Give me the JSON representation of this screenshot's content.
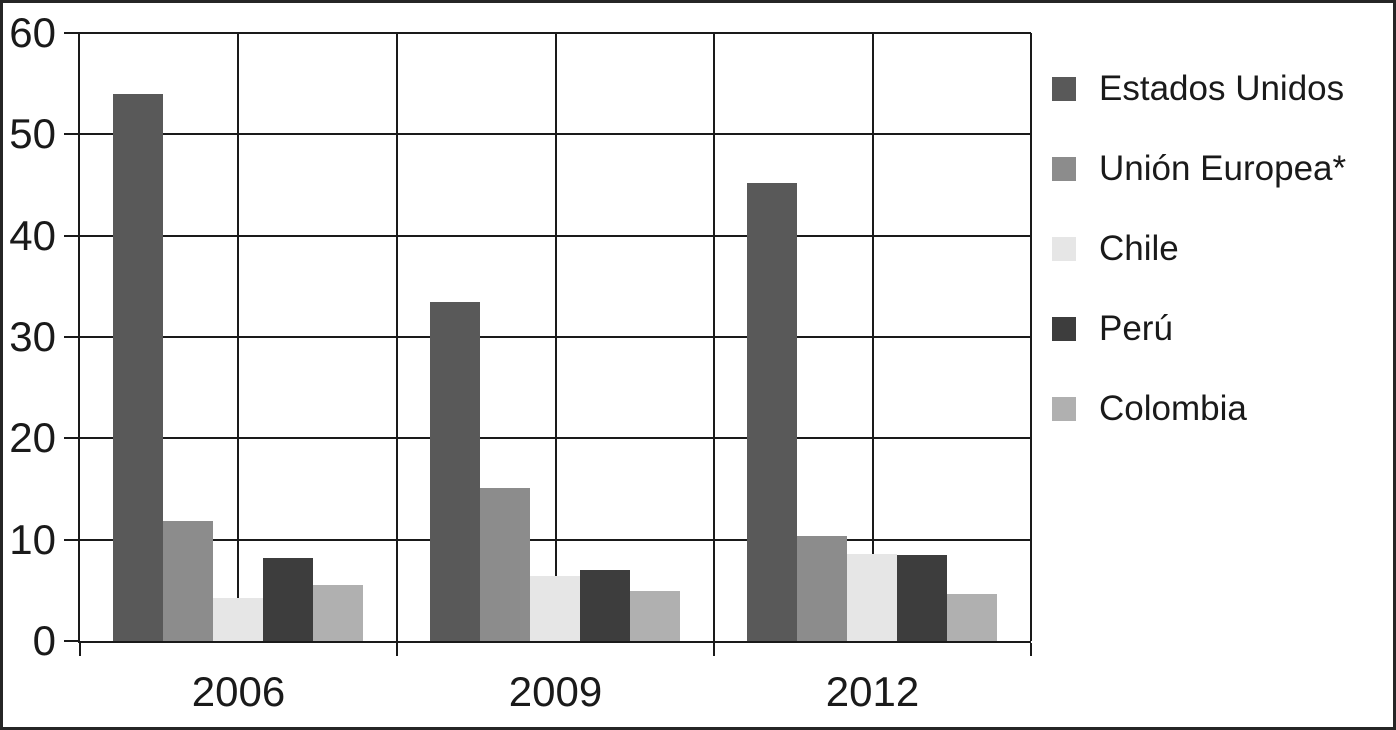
{
  "page": {
    "background": "#ffffff",
    "border_color": "#262626"
  },
  "chart_data": {
    "type": "bar",
    "title": "",
    "xlabel": "",
    "ylabel": "",
    "categories": [
      "2006",
      "2009",
      "2012"
    ],
    "series": [
      {
        "name": "Estados Unidos",
        "color": "#595959",
        "values": [
          54,
          33.5,
          45.2
        ]
      },
      {
        "name": "Unión Europea*",
        "color": "#8c8c8c",
        "values": [
          11.8,
          15.1,
          10.4
        ]
      },
      {
        "name": "Chile",
        "color": "#e6e6e6",
        "values": [
          4.2,
          6.4,
          8.6
        ]
      },
      {
        "name": "Perú",
        "color": "#3d3d3d",
        "values": [
          8.2,
          7.0,
          8.5
        ]
      },
      {
        "name": "Colombia",
        "color": "#b0b0b0",
        "values": [
          5.5,
          4.9,
          4.6
        ]
      }
    ],
    "ylim": [
      0,
      60
    ],
    "yticks": [
      0,
      10,
      20,
      30,
      40,
      50,
      60
    ],
    "grid": true,
    "gridline_color": "#1a1a1a",
    "legend_position": "right"
  }
}
